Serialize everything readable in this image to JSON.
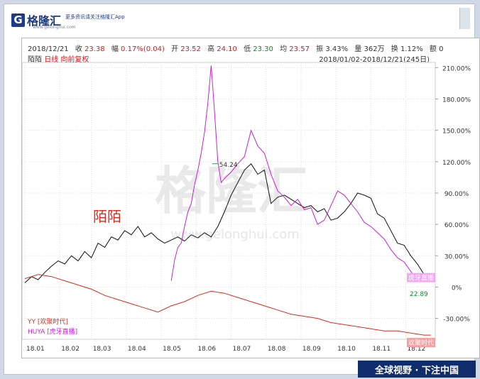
{
  "header": {
    "logo_glyph": "G",
    "logo_text": "格隆汇",
    "tagline": "更多资讯请关注格隆汇App",
    "url": "www.gelonghui.com"
  },
  "info": {
    "date": "2018/12/21",
    "close_label": "收",
    "close_value": "23.38",
    "change_label": "幅",
    "change_value": "0.17%(0.04)",
    "open_label": "开",
    "open_value": "23.52",
    "high_label": "高",
    "high_value": "24.10",
    "low_label": "低",
    "low_value": "23.30",
    "avg_label": "均",
    "avg_value": "23.57",
    "amp_label": "振",
    "amp_value": "3.43%",
    "vol_label": "量",
    "vol_value": "362万",
    "turn_label": "换",
    "turn_value": "1.12%",
    "amount_label": "额",
    "amount_value": "0"
  },
  "subheader": {
    "stock_name": "陌陌",
    "period": "日线",
    "adjust": "向前复权",
    "range": "2018/01/02-2018/12/21(245日)"
  },
  "footer": {
    "slogan": "全球视野 · 下注中国"
  },
  "colors": {
    "momo": "#111111",
    "yy": "#e02a1e",
    "huya": "#cc1fd8",
    "footer_bg": "#0f2c6b"
  },
  "chart_data": {
    "type": "line",
    "x_ticks": [
      "18.01",
      "18.02",
      "18.03",
      "18.04",
      "18.05",
      "18.06",
      "18.07",
      "18.08",
      "18.09",
      "18.10",
      "18.11",
      "18.12"
    ],
    "y_ticks": [
      "210.00%",
      "180.00%",
      "150.00%",
      "120.00%",
      "90.00%",
      "60.00%",
      "30.00%",
      "0%",
      "-30.00%"
    ],
    "ylim": [
      -50,
      215
    ],
    "grid": true,
    "annotation_big": "陌陌",
    "watermark": "格隆汇",
    "watermark_url": "www.gelonghui.com",
    "legend": [
      "YY [欢聚时代]",
      "HUYA [虎牙直播]"
    ],
    "end_labels": {
      "huya": "虎牙直播",
      "yy": "欢聚时代",
      "momo_last": "22.89"
    },
    "peak_label": "54.24",
    "series": [
      {
        "name": "陌陌",
        "x": [
          0,
          4,
          8,
          12,
          16,
          20,
          24,
          28,
          32,
          36,
          40,
          44,
          48,
          52,
          56,
          60,
          64,
          68,
          72,
          76,
          80,
          84,
          88,
          92,
          96,
          100,
          104,
          108,
          112,
          116,
          120,
          124,
          128,
          132,
          136,
          140,
          144,
          148,
          152,
          156,
          160,
          164,
          168,
          172,
          176,
          180,
          184,
          188,
          192,
          196,
          200,
          204,
          208,
          212,
          216,
          220,
          224,
          228,
          232,
          236,
          240,
          244
        ],
        "values": [
          4,
          10,
          7,
          14,
          20,
          25,
          22,
          30,
          25,
          34,
          28,
          42,
          38,
          48,
          45,
          54,
          50,
          58,
          48,
          52,
          46,
          42,
          45,
          48,
          44,
          50,
          47,
          52,
          48,
          58,
          72,
          88,
          100,
          112,
          118,
          108,
          112,
          80,
          86,
          88,
          84,
          80,
          76,
          78,
          72,
          75,
          64,
          66,
          72,
          80,
          90,
          88,
          85,
          70,
          66,
          54,
          42,
          40,
          30,
          22,
          12,
          6
        ]
      },
      {
        "name": "HUYA [虎牙直播]",
        "x": [
          88,
          90,
          92,
          94,
          96,
          98,
          100,
          102,
          104,
          106,
          108,
          110,
          112,
          114,
          116,
          118,
          120,
          124,
          128,
          132,
          136,
          140,
          144,
          148,
          152,
          156,
          160,
          164,
          168,
          172,
          176,
          180,
          184,
          188,
          192,
          196,
          200,
          204,
          208,
          212,
          216,
          220,
          224,
          228,
          232,
          236,
          240,
          244
        ],
        "values": [
          6,
          26,
          38,
          42,
          58,
          72,
          80,
          98,
          112,
          128,
          148,
          176,
          212,
          168,
          120,
          100,
          104,
          110,
          118,
          125,
          150,
          135,
          128,
          108,
          92,
          86,
          78,
          84,
          74,
          76,
          60,
          64,
          78,
          92,
          88,
          80,
          72,
          62,
          58,
          52,
          46,
          36,
          28,
          24,
          15,
          6,
          10,
          10
        ]
      },
      {
        "name": "YY [欢聚时代]",
        "x": [
          0,
          8,
          16,
          24,
          32,
          40,
          48,
          56,
          64,
          72,
          80,
          88,
          96,
          104,
          112,
          120,
          128,
          136,
          144,
          152,
          160,
          168,
          176,
          184,
          192,
          200,
          208,
          216,
          224,
          232,
          240,
          244
        ],
        "values": [
          8,
          12,
          10,
          6,
          2,
          -2,
          -8,
          -12,
          -16,
          -20,
          -24,
          -18,
          -14,
          -8,
          -4,
          -6,
          -10,
          -14,
          -18,
          -22,
          -26,
          -28,
          -30,
          -34,
          -36,
          -38,
          -40,
          -42,
          -42,
          -44,
          -46,
          -46
        ]
      }
    ]
  }
}
